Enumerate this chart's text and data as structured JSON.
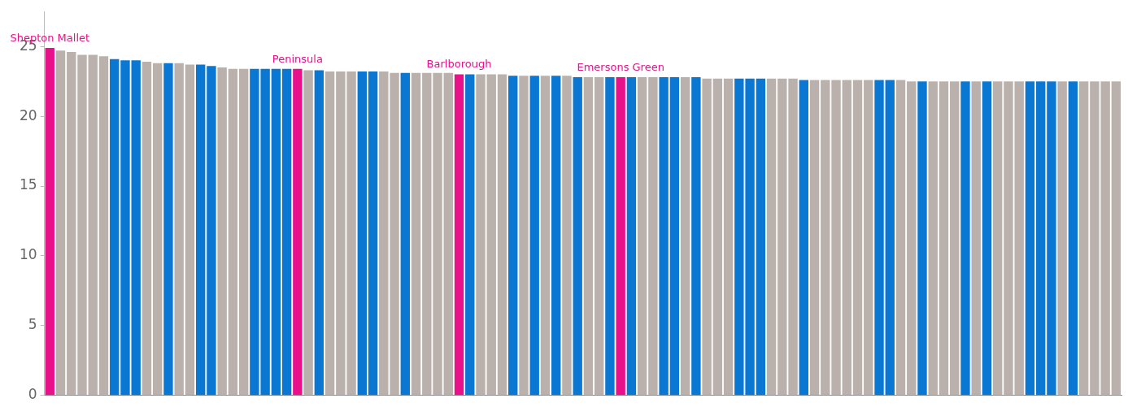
{
  "chart_data": {
    "type": "bar",
    "categories": [
      "Shepton Mallet",
      null,
      null,
      null,
      null,
      null,
      null,
      null,
      null,
      null,
      null,
      null,
      null,
      null,
      null,
      null,
      null,
      null,
      null,
      null,
      null,
      null,
      null,
      "Peninsula",
      null,
      null,
      null,
      null,
      null,
      null,
      null,
      null,
      null,
      null,
      null,
      null,
      null,
      null,
      "Barlborough",
      null,
      null,
      null,
      null,
      null,
      null,
      null,
      null,
      null,
      null,
      null,
      null,
      null,
      null,
      "Emersons Green",
      null,
      null,
      null,
      null,
      null,
      null,
      null,
      null,
      null,
      null,
      null,
      null,
      null,
      null,
      null,
      null,
      null,
      null,
      null,
      null,
      null,
      null,
      null,
      null,
      null,
      null,
      null,
      null,
      null,
      null,
      null,
      null,
      null,
      null,
      null,
      null,
      null,
      null,
      null,
      null,
      null,
      null,
      null,
      null,
      null,
      null
    ],
    "values": [
      24.9,
      24.7,
      24.6,
      24.4,
      24.4,
      24.3,
      24.1,
      24.0,
      24.0,
      23.9,
      23.8,
      23.8,
      23.8,
      23.7,
      23.7,
      23.6,
      23.5,
      23.4,
      23.4,
      23.4,
      23.4,
      23.4,
      23.4,
      23.4,
      23.3,
      23.3,
      23.2,
      23.2,
      23.2,
      23.2,
      23.2,
      23.2,
      23.1,
      23.1,
      23.1,
      23.1,
      23.1,
      23.1,
      23.0,
      23.0,
      23.0,
      23.0,
      23.0,
      22.9,
      22.9,
      22.9,
      22.9,
      22.9,
      22.9,
      22.8,
      22.8,
      22.8,
      22.8,
      22.8,
      22.8,
      22.8,
      22.8,
      22.8,
      22.8,
      22.8,
      22.8,
      22.7,
      22.7,
      22.7,
      22.7,
      22.7,
      22.7,
      22.7,
      22.7,
      22.7,
      22.6,
      22.6,
      22.6,
      22.6,
      22.6,
      22.6,
      22.6,
      22.6,
      22.6,
      22.6,
      22.5,
      22.5,
      22.5,
      22.5,
      22.5,
      22.5,
      22.5,
      22.5,
      22.5,
      22.5,
      22.5,
      22.5,
      22.5,
      22.5,
      22.5,
      22.5,
      22.5,
      22.5,
      22.5,
      22.5
    ],
    "colors": [
      "#e8118a",
      "#bab0ac",
      "#bab0ac",
      "#bab0ac",
      "#bab0ac",
      "#bab0ac",
      "#0a78d2",
      "#0a78d2",
      "#0a78d2",
      "#bab0ac",
      "#bab0ac",
      "#0a78d2",
      "#bab0ac",
      "#bab0ac",
      "#0a78d2",
      "#0a78d2",
      "#bab0ac",
      "#bab0ac",
      "#bab0ac",
      "#0a78d2",
      "#0a78d2",
      "#0a78d2",
      "#0a78d2",
      "#e8118a",
      "#bab0ac",
      "#0a78d2",
      "#bab0ac",
      "#bab0ac",
      "#bab0ac",
      "#0a78d2",
      "#0a78d2",
      "#bab0ac",
      "#bab0ac",
      "#0a78d2",
      "#bab0ac",
      "#bab0ac",
      "#bab0ac",
      "#bab0ac",
      "#e8118a",
      "#0a78d2",
      "#bab0ac",
      "#bab0ac",
      "#bab0ac",
      "#0a78d2",
      "#bab0ac",
      "#0a78d2",
      "#bab0ac",
      "#0a78d2",
      "#bab0ac",
      "#0a78d2",
      "#bab0ac",
      "#bab0ac",
      "#0a78d2",
      "#e8118a",
      "#0a78d2",
      "#bab0ac",
      "#bab0ac",
      "#0a78d2",
      "#0a78d2",
      "#bab0ac",
      "#0a78d2",
      "#bab0ac",
      "#bab0ac",
      "#bab0ac",
      "#0a78d2",
      "#0a78d2",
      "#0a78d2",
      "#bab0ac",
      "#bab0ac",
      "#bab0ac",
      "#0a78d2",
      "#bab0ac",
      "#bab0ac",
      "#bab0ac",
      "#bab0ac",
      "#bab0ac",
      "#bab0ac",
      "#0a78d2",
      "#0a78d2",
      "#bab0ac",
      "#bab0ac",
      "#0a78d2",
      "#bab0ac",
      "#bab0ac",
      "#bab0ac",
      "#0a78d2",
      "#bab0ac",
      "#0a78d2",
      "#bab0ac",
      "#bab0ac",
      "#bab0ac",
      "#0a78d2",
      "#0a78d2",
      "#0a78d2",
      "#bab0ac",
      "#0a78d2",
      "#bab0ac",
      "#bab0ac",
      "#bab0ac",
      "#bab0ac"
    ],
    "ylim": [
      0,
      27.5
    ],
    "yticks": [
      0,
      5,
      10,
      15,
      20,
      25
    ],
    "grid": false
  }
}
